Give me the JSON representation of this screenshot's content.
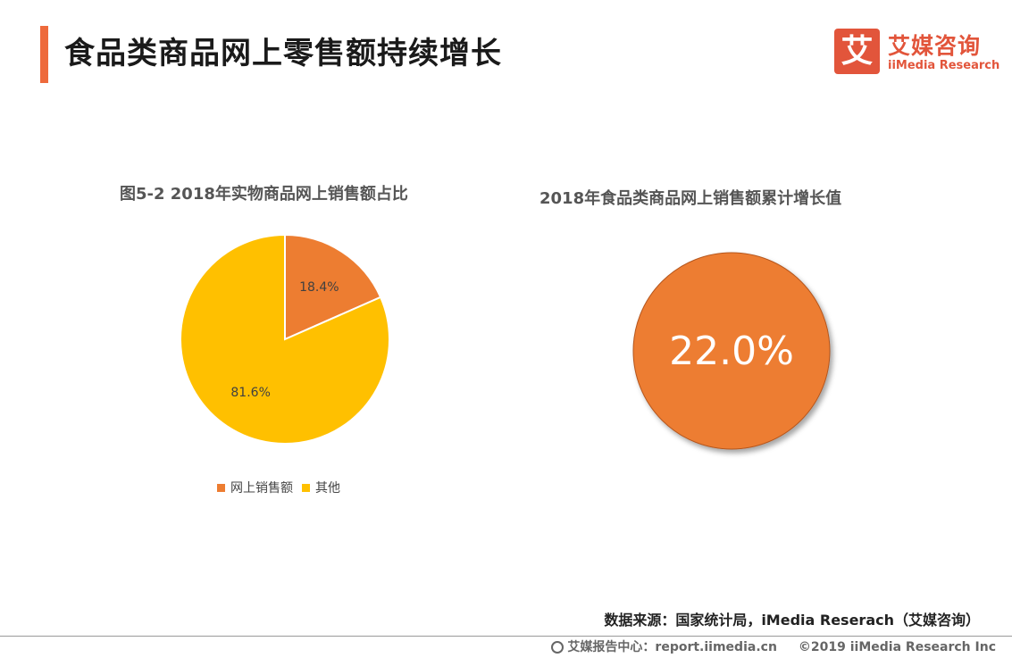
{
  "header": {
    "title": "食品类商品网上零售额持续增长",
    "logo_mark": "艾",
    "logo_cn": "艾媒咨询",
    "logo_en": "iiMedia Research"
  },
  "colors": {
    "accent": "#ee6a3c",
    "online": "#ed7d31",
    "other": "#ffc000",
    "brand": "#e2553b"
  },
  "chart_data": [
    {
      "type": "pie",
      "title": "图5-2  2018年实物商品网上销售额占比",
      "categories": [
        "网上销售额",
        "其他"
      ],
      "values": [
        18.4,
        81.6
      ],
      "data_labels": [
        "18.4%",
        "81.6%"
      ],
      "colors": [
        "#ed7d31",
        "#ffc000"
      ],
      "legend": "bottom"
    },
    {
      "type": "pie",
      "title": "2018年食品类商品网上销售额累计增长值",
      "categories": [
        ""
      ],
      "values": [
        22.0
      ],
      "data_labels": [
        "22.0%"
      ],
      "colors": [
        "#ed7d31"
      ]
    }
  ],
  "source": "数据来源：国家统计局，iMedia Reserach（艾媒咨询）",
  "footer": {
    "left": "艾媒报告中心：report.iimedia.cn",
    "right": "©2019  iiMedia Research  Inc"
  }
}
